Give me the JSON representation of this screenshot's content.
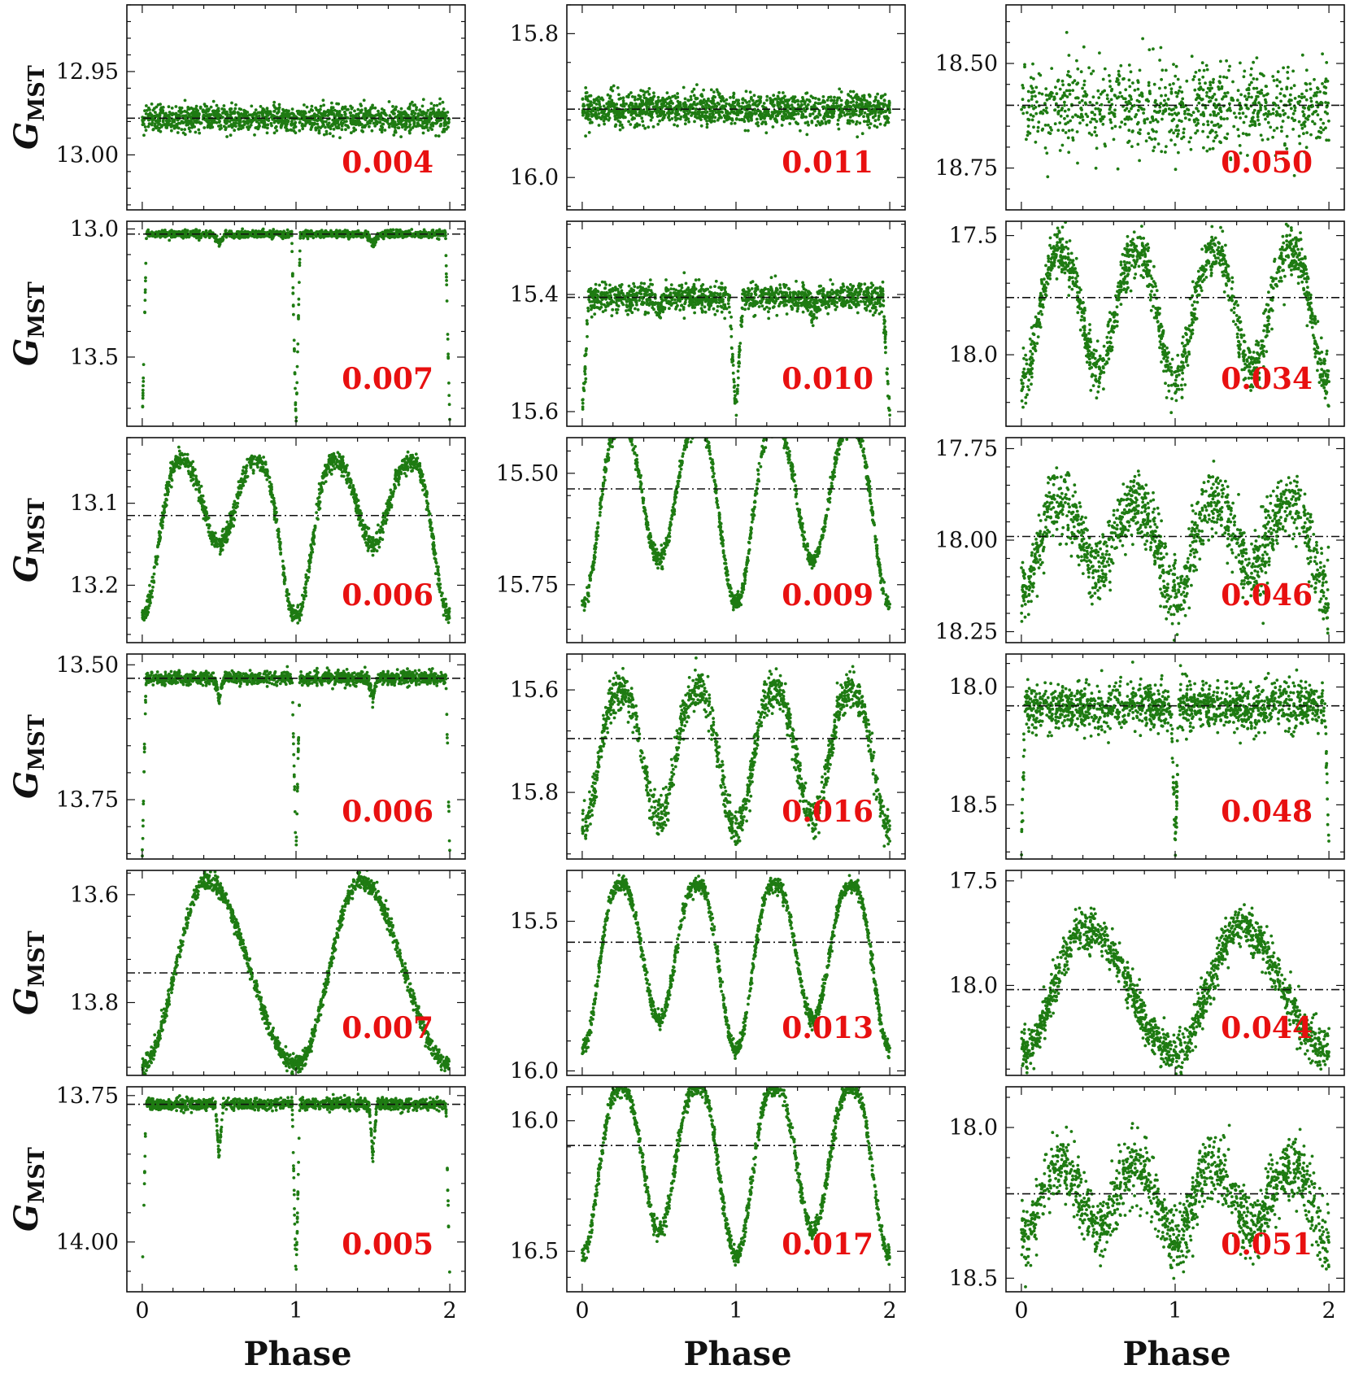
{
  "figure": {
    "ylabel_main": "G",
    "ylabel_sub": "MST",
    "xlabel": "Phase",
    "colors": {
      "points": "#1e7b12",
      "reference_line": "#111111",
      "rms_label": "#e81010",
      "axes": "#111111"
    }
  },
  "chart_data": [
    {
      "type": "scatter",
      "panel": "r1c1",
      "title": "",
      "xlabel": "",
      "ylabel": "G_MST",
      "xlim": [
        -0.1,
        2.1
      ],
      "ylim": [
        13.033,
        12.91
      ],
      "yticks": [
        12.95,
        13.0
      ],
      "yticklabels": [
        "12.95",
        "13.00"
      ],
      "reference_mag": 12.978,
      "rms": "0.004",
      "shape": "flat",
      "amplitude": 0,
      "scatter": 0.004
    },
    {
      "type": "scatter",
      "panel": "r1c2",
      "title": "",
      "xlabel": "",
      "ylabel": "G_MST",
      "xlim": [
        -0.1,
        2.1
      ],
      "ylim": [
        16.045,
        15.76
      ],
      "yticks": [
        15.8,
        16.0
      ],
      "yticklabels": [
        "15.8",
        "16.0"
      ],
      "reference_mag": 15.905,
      "rms": "0.011",
      "shape": "flat",
      "amplitude": 0,
      "scatter": 0.011
    },
    {
      "type": "scatter",
      "panel": "r1c3",
      "title": "",
      "xlabel": "",
      "ylabel": "G_MST",
      "xlim": [
        -0.1,
        2.1
      ],
      "ylim": [
        18.85,
        18.36
      ],
      "yticks": [
        18.5,
        18.75
      ],
      "yticklabels": [
        "18.50",
        "18.75"
      ],
      "reference_mag": 18.6,
      "rms": "0.050",
      "shape": "flat",
      "amplitude": 0,
      "scatter": 0.05
    },
    {
      "type": "scatter",
      "panel": "r2c1",
      "title": "",
      "xlabel": "",
      "ylabel": "G_MST",
      "xlim": [
        -0.1,
        2.1
      ],
      "ylim": [
        13.77,
        12.97
      ],
      "yticks": [
        13.0,
        13.5
      ],
      "yticklabels": [
        "13.0",
        "13.5"
      ],
      "reference_mag": 13.02,
      "rms": "0.007",
      "shape": "detached",
      "amplitude": 0.75,
      "depth2": 0.05,
      "width1": 0.028,
      "width2": 0.04,
      "scatter": 0.007
    },
    {
      "type": "scatter",
      "panel": "r2c2",
      "title": "",
      "xlabel": "",
      "ylabel": "G_MST",
      "xlim": [
        -0.1,
        2.1
      ],
      "ylim": [
        15.625,
        15.275
      ],
      "yticks": [
        15.4,
        15.6
      ],
      "yticklabels": [
        "15.4",
        "15.6"
      ],
      "reference_mag": 15.405,
      "rms": "0.010",
      "shape": "detached",
      "amplitude": 0.2,
      "depth2": 0.12,
      "width1": 0.045,
      "width2": 0.045,
      "scatter": 0.012
    },
    {
      "type": "scatter",
      "panel": "r2c3",
      "title": "",
      "xlabel": "",
      "ylabel": "G_MST",
      "xlim": [
        -0.1,
        2.1
      ],
      "ylim": [
        18.3,
        17.44
      ],
      "yticks": [
        17.5,
        18.0
      ],
      "yticklabels": [
        "17.5",
        "18.0"
      ],
      "reference_mag": 17.76,
      "rms": "0.034",
      "shape": "wuma",
      "amplitude": 0.55,
      "depth2": 0.5,
      "scatter": 0.05
    },
    {
      "type": "scatter",
      "panel": "r3c1",
      "title": "",
      "xlabel": "",
      "ylabel": "G_MST",
      "xlim": [
        -0.1,
        2.1
      ],
      "ylim": [
        13.27,
        13.02
      ],
      "yticks": [
        13.1,
        13.2
      ],
      "yticklabels": [
        "13.1",
        "13.2"
      ],
      "reference_mag": 13.115,
      "rms": "0.006",
      "shape": "wuma",
      "amplitude": 0.19,
      "depth2": 0.1,
      "scatter": 0.006
    },
    {
      "type": "scatter",
      "panel": "r3c2",
      "title": "",
      "xlabel": "",
      "ylabel": "G_MST",
      "xlim": [
        -0.1,
        2.1
      ],
      "ylim": [
        15.88,
        15.42
      ],
      "yticks": [
        15.5,
        15.75
      ],
      "yticklabels": [
        "15.50",
        "15.75"
      ],
      "reference_mag": 15.535,
      "rms": "0.009",
      "shape": "wuma",
      "amplitude": 0.4,
      "depth2": 0.3,
      "scatter": 0.009
    },
    {
      "type": "scatter",
      "panel": "r3c3",
      "title": "",
      "xlabel": "",
      "ylabel": "G_MST",
      "xlim": [
        -0.1,
        2.1
      ],
      "ylim": [
        18.28,
        17.72
      ],
      "yticks": [
        17.75,
        18.0,
        18.25
      ],
      "yticklabels": [
        "17.75",
        "18.00",
        "18.25"
      ],
      "reference_mag": 17.99,
      "rms": "0.046",
      "shape": "wuma",
      "amplitude": 0.25,
      "depth2": 0.18,
      "scatter": 0.05
    },
    {
      "type": "scatter",
      "panel": "r4c1",
      "title": "",
      "xlabel": "",
      "ylabel": "G_MST",
      "xlim": [
        -0.1,
        2.1
      ],
      "ylim": [
        13.86,
        13.48
      ],
      "yticks": [
        13.5,
        13.75
      ],
      "yticklabels": [
        "13.50",
        "13.75"
      ],
      "reference_mag": 13.525,
      "rms": "0.006",
      "shape": "detached",
      "amplitude": 0.33,
      "depth2": 0.12,
      "width1": 0.025,
      "width2": 0.03,
      "scatter": 0.006
    },
    {
      "type": "scatter",
      "panel": "r4c2",
      "title": "",
      "xlabel": "",
      "ylabel": "G_MST",
      "xlim": [
        -0.1,
        2.1
      ],
      "ylim": [
        15.93,
        15.53
      ],
      "yticks": [
        15.6,
        15.8
      ],
      "yticklabels": [
        "15.6",
        "15.8"
      ],
      "reference_mag": 15.695,
      "rms": "0.016",
      "shape": "wuma",
      "amplitude": 0.27,
      "depth2": 0.25,
      "scatter": 0.018
    },
    {
      "type": "scatter",
      "panel": "r4c3",
      "title": "",
      "xlabel": "",
      "ylabel": "G_MST",
      "xlim": [
        -0.1,
        2.1
      ],
      "ylim": [
        18.73,
        17.86
      ],
      "yticks": [
        18.0,
        18.5
      ],
      "yticklabels": [
        "18.0",
        "18.5"
      ],
      "reference_mag": 18.08,
      "rms": "0.048",
      "shape": "detached",
      "amplitude": 0.6,
      "depth2": 0.05,
      "width1": 0.025,
      "width2": 0.06,
      "scatter": 0.05
    },
    {
      "type": "scatter",
      "panel": "r5c1",
      "title": "",
      "xlabel": "",
      "ylabel": "G_MST",
      "xlim": [
        -0.1,
        2.1
      ],
      "ylim": [
        13.935,
        13.555
      ],
      "yticks": [
        13.6,
        13.8
      ],
      "yticklabels": [
        "13.6",
        "13.8"
      ],
      "reference_mag": 13.745,
      "rms": "0.007",
      "shape": "rrlyrae",
      "amplitude": 0.34,
      "rise_phase": 0.42,
      "scatter": 0.008
    },
    {
      "type": "scatter",
      "panel": "r5c2",
      "title": "",
      "xlabel": "",
      "ylabel": "G_MST",
      "xlim": [
        -0.1,
        2.1
      ],
      "ylim": [
        16.015,
        15.33
      ],
      "yticks": [
        15.5,
        16.0
      ],
      "yticklabels": [
        "15.5",
        "16.0"
      ],
      "reference_mag": 15.57,
      "rms": "0.013",
      "shape": "wuma",
      "amplitude": 0.55,
      "depth2": 0.45,
      "scatter": 0.013
    },
    {
      "type": "scatter",
      "panel": "r5c3",
      "title": "",
      "xlabel": "",
      "ylabel": "G_MST",
      "xlim": [
        -0.1,
        2.1
      ],
      "ylim": [
        18.43,
        17.45
      ],
      "yticks": [
        17.5,
        18.0
      ],
      "yticklabels": [
        "17.5",
        "18.0"
      ],
      "reference_mag": 18.02,
      "rms": "0.044",
      "shape": "rrlyrae",
      "amplitude": 0.6,
      "rise_phase": 0.42,
      "scatter": 0.05
    },
    {
      "type": "scatter",
      "panel": "r6c1",
      "title": "",
      "xlabel": "",
      "ylabel": "G_MST",
      "xlim": [
        -0.1,
        2.1
      ],
      "ylim": [
        14.085,
        13.735
      ],
      "yticks": [
        13.75,
        14.0
      ],
      "yticklabels": [
        "13.75",
        "14.00"
      ],
      "reference_mag": 13.765,
      "rms": "0.005",
      "shape": "detached",
      "amplitude": 0.3,
      "depth2": 0.3,
      "width1": 0.025,
      "width2": 0.025,
      "scatter": 0.005
    },
    {
      "type": "scatter",
      "panel": "r6c2",
      "title": "",
      "xlabel": "",
      "ylabel": "G_MST",
      "xlim": [
        -0.1,
        2.1
      ],
      "ylim": [
        16.655,
        15.87
      ],
      "yticks": [
        16.0,
        16.5
      ],
      "yticklabels": [
        "16.0",
        "16.5"
      ],
      "reference_mag": 16.095,
      "rms": "0.017",
      "shape": "wuma",
      "amplitude": 0.65,
      "depth2": 0.55,
      "scatter": 0.018
    },
    {
      "type": "scatter",
      "panel": "r6c3",
      "title": "",
      "xlabel": "",
      "ylabel": "G_MST",
      "xlim": [
        -0.1,
        2.1
      ],
      "ylim": [
        18.545,
        17.865
      ],
      "yticks": [
        18.0,
        18.5
      ],
      "yticklabels": [
        "18.0",
        "18.5"
      ],
      "reference_mag": 18.22,
      "rms": "0.051",
      "shape": "wuma",
      "amplitude": 0.25,
      "depth2": 0.2,
      "scatter": 0.055
    }
  ]
}
